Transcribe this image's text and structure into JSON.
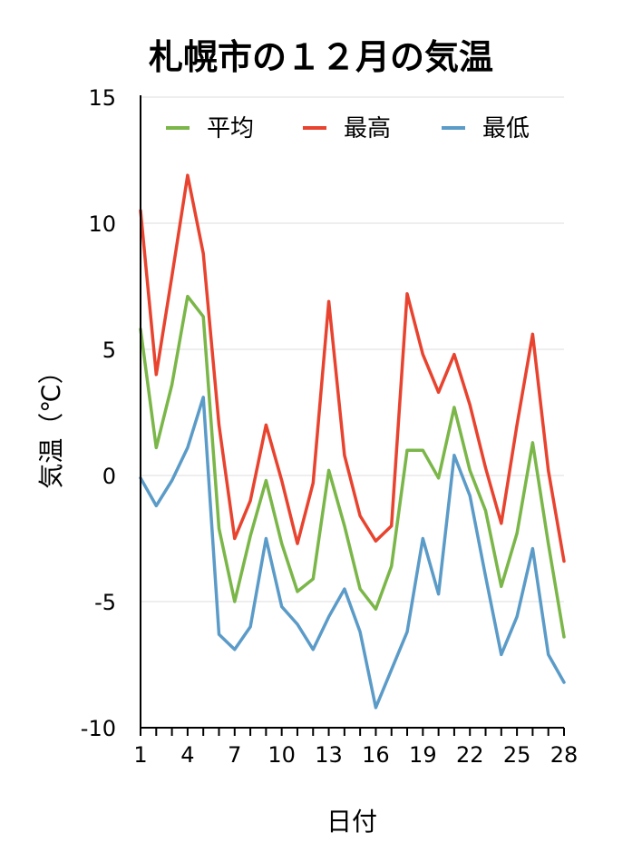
{
  "chart_data": {
    "type": "line",
    "title": "札幌市の１２月の気温",
    "xlabel": "日付",
    "ylabel": "気温（℃）",
    "x": [
      1,
      2,
      3,
      4,
      5,
      6,
      7,
      8,
      9,
      10,
      11,
      12,
      13,
      14,
      15,
      16,
      17,
      18,
      19,
      20,
      21,
      22,
      23,
      24,
      25,
      26,
      27,
      28
    ],
    "x_ticks": [
      1,
      4,
      7,
      10,
      13,
      16,
      19,
      22,
      25,
      28
    ],
    "ylim": [
      -10,
      15
    ],
    "y_ticks": [
      -10,
      -5,
      0,
      5,
      10,
      15
    ],
    "grid": "horizontal",
    "legend_position": "top",
    "series": [
      {
        "name": "平均",
        "color": "#7ab648",
        "values": [
          5.8,
          1.1,
          3.6,
          7.1,
          6.3,
          -2.1,
          -5.0,
          -2.4,
          -0.2,
          -2.7,
          -4.6,
          -4.1,
          0.2,
          -2.0,
          -4.5,
          -5.3,
          -3.6,
          1.0,
          1.0,
          -0.1,
          2.7,
          0.2,
          -1.4,
          -4.4,
          -2.3,
          1.3,
          -2.7,
          -6.4
        ]
      },
      {
        "name": "最高",
        "color": "#e8432f",
        "values": [
          10.5,
          4.0,
          7.9,
          11.9,
          8.8,
          2.0,
          -2.5,
          -1.0,
          2.0,
          -0.2,
          -2.7,
          -0.3,
          6.9,
          0.8,
          -1.6,
          -2.6,
          -2.0,
          7.2,
          4.8,
          3.3,
          4.8,
          2.8,
          0.3,
          -1.9,
          2.0,
          5.6,
          0.2,
          -3.4
        ]
      },
      {
        "name": "最低",
        "color": "#5b9bc8",
        "values": [
          -0.1,
          -1.2,
          -0.2,
          1.1,
          3.1,
          -6.3,
          -6.9,
          -6.0,
          -2.5,
          -5.2,
          -5.9,
          -6.9,
          -5.6,
          -4.5,
          -6.2,
          -9.2,
          -7.7,
          -6.2,
          -2.5,
          -4.7,
          0.8,
          -0.8,
          -4.0,
          -7.1,
          -5.6,
          -2.9,
          -7.1,
          -8.2
        ]
      }
    ]
  }
}
